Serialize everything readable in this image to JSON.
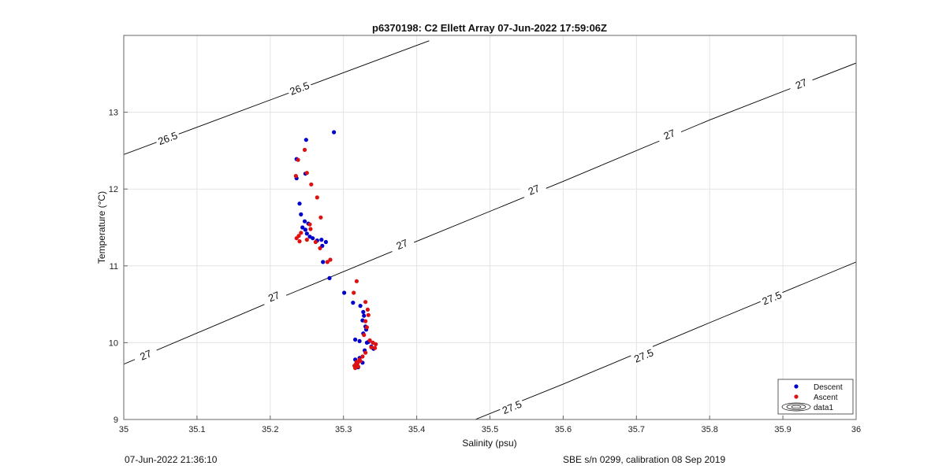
{
  "chart_data": {
    "type": "scatter",
    "title": "p6370198: C2 Ellett Array 07-Jun-2022 17:59:06Z",
    "xlabel": "Salinity (psu)",
    "ylabel": "Temperature (°C)",
    "xlim": [
      35,
      36
    ],
    "ylim": [
      9,
      14
    ],
    "xticks": [
      35,
      35.1,
      35.2,
      35.3,
      35.4,
      35.5,
      35.6,
      35.7,
      35.8,
      35.9,
      36
    ],
    "xtick_labels": [
      "35",
      "35.1",
      "35.2",
      "35.3",
      "35.4",
      "35.5",
      "35.6",
      "35.7",
      "35.8",
      "35.9",
      "36"
    ],
    "yticks": [
      9,
      10,
      11,
      12,
      13
    ],
    "ytick_labels": [
      "9",
      "10",
      "11",
      "12",
      "13"
    ],
    "grid": true,
    "legend_position": "bottom-right",
    "series": [
      {
        "name": "Descent",
        "color": "#0000cc",
        "points": [
          [
            35.287,
            12.74
          ],
          [
            35.249,
            12.64
          ],
          [
            35.236,
            12.39
          ],
          [
            35.248,
            12.2
          ],
          [
            35.236,
            12.14
          ],
          [
            35.24,
            11.81
          ],
          [
            35.242,
            11.67
          ],
          [
            35.247,
            11.58
          ],
          [
            35.252,
            11.55
          ],
          [
            35.244,
            11.5
          ],
          [
            35.248,
            11.47
          ],
          [
            35.25,
            11.42
          ],
          [
            35.254,
            11.38
          ],
          [
            35.258,
            11.36
          ],
          [
            35.264,
            11.33
          ],
          [
            35.27,
            11.34
          ],
          [
            35.276,
            11.31
          ],
          [
            35.271,
            11.26
          ],
          [
            35.272,
            11.05
          ],
          [
            35.281,
            10.84
          ],
          [
            35.301,
            10.65
          ],
          [
            35.313,
            10.52
          ],
          [
            35.323,
            10.48
          ],
          [
            35.327,
            10.4
          ],
          [
            35.328,
            10.35
          ],
          [
            35.326,
            10.29
          ],
          [
            35.33,
            10.21
          ],
          [
            35.331,
            10.17
          ],
          [
            35.327,
            10.12
          ],
          [
            35.334,
            10.01
          ],
          [
            35.322,
            10.02
          ],
          [
            35.316,
            10.04
          ],
          [
            35.332,
            10.0
          ],
          [
            35.338,
            9.95
          ],
          [
            35.341,
            9.92
          ],
          [
            35.329,
            9.9
          ],
          [
            35.322,
            9.8
          ],
          [
            35.316,
            9.78
          ],
          [
            35.318,
            9.74
          ],
          [
            35.316,
            9.7
          ],
          [
            35.32,
            9.68
          ],
          [
            35.326,
            9.74
          ]
        ]
      },
      {
        "name": "Ascent",
        "color": "#dd1111",
        "points": [
          [
            35.247,
            12.51
          ],
          [
            35.238,
            12.38
          ],
          [
            35.25,
            12.21
          ],
          [
            35.235,
            12.17
          ],
          [
            35.256,
            12.06
          ],
          [
            35.264,
            11.89
          ],
          [
            35.269,
            11.63
          ],
          [
            35.254,
            11.54
          ],
          [
            35.255,
            11.48
          ],
          [
            35.242,
            11.43
          ],
          [
            35.239,
            11.39
          ],
          [
            35.236,
            11.36
          ],
          [
            35.24,
            11.32
          ],
          [
            35.25,
            11.34
          ],
          [
            35.262,
            11.31
          ],
          [
            35.268,
            11.23
          ],
          [
            35.282,
            11.08
          ],
          [
            35.278,
            11.05
          ],
          [
            35.318,
            10.8
          ],
          [
            35.314,
            10.65
          ],
          [
            35.33,
            10.53
          ],
          [
            35.333,
            10.43
          ],
          [
            35.334,
            10.36
          ],
          [
            35.33,
            10.28
          ],
          [
            35.332,
            10.2
          ],
          [
            35.328,
            10.1
          ],
          [
            35.336,
            10.03
          ],
          [
            35.34,
            10.0
          ],
          [
            35.344,
            9.98
          ],
          [
            35.338,
            9.94
          ],
          [
            35.343,
            9.93
          ],
          [
            35.33,
            9.87
          ],
          [
            35.326,
            9.82
          ],
          [
            35.322,
            9.78
          ],
          [
            35.318,
            9.75
          ],
          [
            35.317,
            9.72
          ],
          [
            35.315,
            9.7
          ],
          [
            35.32,
            9.69
          ],
          [
            35.316,
            9.67
          ],
          [
            35.319,
            9.73
          ],
          [
            35.323,
            9.76
          ]
        ]
      }
    ],
    "contours": [
      {
        "label": "26.5",
        "points": [
          [
            35.0,
            12.45
          ],
          [
            35.2,
            13.16
          ],
          [
            35.4,
            13.87
          ],
          [
            35.417,
            13.93
          ]
        ],
        "label_positions": [
          [
            35.06,
            12.66
          ],
          [
            35.24,
            13.31
          ]
        ]
      },
      {
        "label": "27",
        "points": [
          [
            35.0,
            9.72
          ],
          [
            35.2,
            10.53
          ],
          [
            35.4,
            11.32
          ],
          [
            35.6,
            12.1
          ],
          [
            35.8,
            12.9
          ],
          [
            36.0,
            13.64
          ]
        ],
        "label_positions": [
          [
            35.03,
            9.84
          ],
          [
            35.205,
            10.6
          ],
          [
            35.38,
            11.28
          ],
          [
            35.56,
            11.99
          ],
          [
            35.745,
            12.71
          ],
          [
            35.925,
            13.37
          ]
        ]
      },
      {
        "label": "27.5",
        "points": [
          [
            35.48,
            9.0
          ],
          [
            35.6,
            9.46
          ],
          [
            35.8,
            10.26
          ],
          [
            36.0,
            11.05
          ]
        ],
        "label_positions": [
          [
            35.53,
            9.16
          ],
          [
            35.71,
            9.83
          ],
          [
            35.885,
            10.58
          ]
        ]
      }
    ],
    "legend": [
      {
        "label": "Descent",
        "symbol": "dot",
        "color": "#0000cc"
      },
      {
        "label": "Ascent",
        "symbol": "dot",
        "color": "#dd1111"
      },
      {
        "label": "data1",
        "symbol": "contour",
        "color": "#000000"
      }
    ]
  },
  "footer": {
    "left_text": "07-Jun-2022 21:36:10",
    "right_text": "SBE s/n 0299, calibration 08 Sep 2019"
  }
}
